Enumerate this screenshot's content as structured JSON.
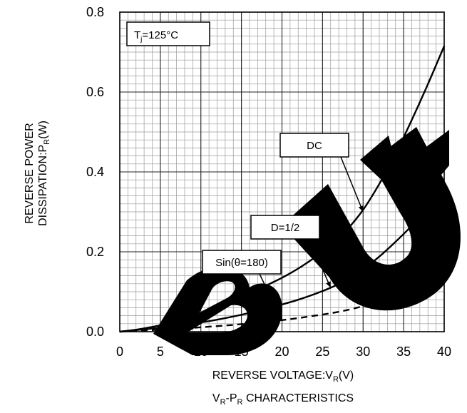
{
  "chart_data": {
    "type": "line",
    "title": "",
    "caption": {
      "main": "V",
      "sub1": "R",
      "mid": "-P",
      "sub2": "R",
      "rest": " CHARACTERISTICS"
    },
    "xlabel": {
      "main": "REVERSE VOLTAGE:V",
      "sub": "R",
      "unit": "(V)"
    },
    "ylabel": {
      "line1": "REVERSE POWER",
      "line2_main": "DISSIPATION:P",
      "line2_sub": "R",
      "line2_unit": "(W)"
    },
    "xlim": [
      0,
      40
    ],
    "ylim": [
      0,
      0.8
    ],
    "x_ticks": [
      "0",
      "5",
      "10",
      "15",
      "20",
      "25",
      "30",
      "35",
      "40"
    ],
    "y_ticks": [
      "0.0",
      "0.2",
      "0.4",
      "0.6",
      "0.8"
    ],
    "grid": true,
    "condition": {
      "main": "T",
      "sub": "j",
      "rest": "=125°C"
    },
    "series": [
      {
        "name": "DC",
        "style": "solid",
        "x": [
          0,
          2,
          4,
          6,
          8,
          10,
          12,
          14,
          16,
          18,
          20,
          22,
          24,
          26,
          28,
          30,
          32,
          34,
          36,
          38,
          40
        ],
        "y": [
          0,
          0.005,
          0.012,
          0.02,
          0.03,
          0.043,
          0.058,
          0.075,
          0.095,
          0.115,
          0.135,
          0.158,
          0.185,
          0.215,
          0.255,
          0.305,
          0.37,
          0.445,
          0.53,
          0.62,
          0.715
        ]
      },
      {
        "name": "D=1/2",
        "style": "solid",
        "x": [
          0,
          2,
          4,
          6,
          8,
          10,
          12,
          14,
          16,
          18,
          20,
          22,
          24,
          26,
          28,
          30,
          32,
          34,
          36,
          38,
          40
        ],
        "y": [
          0,
          0.004,
          0.008,
          0.012,
          0.017,
          0.023,
          0.03,
          0.038,
          0.047,
          0.057,
          0.068,
          0.08,
          0.094,
          0.11,
          0.13,
          0.156,
          0.188,
          0.225,
          0.265,
          0.31,
          0.357
        ]
      },
      {
        "name": "Sin(θ=180)",
        "style": "dashed",
        "x": [
          0,
          2,
          4,
          6,
          8,
          10,
          12,
          14,
          16,
          18,
          20,
          22,
          24,
          26,
          28,
          30,
          32,
          34,
          36,
          38,
          40
        ],
        "y": [
          0,
          0.002,
          0.004,
          0.006,
          0.008,
          0.011,
          0.014,
          0.017,
          0.021,
          0.025,
          0.029,
          0.034,
          0.04,
          0.046,
          0.054,
          0.064,
          0.076,
          0.09,
          0.106,
          0.124,
          0.144
        ]
      }
    ],
    "annotations": [
      {
        "label": "DC",
        "target": [
          30,
          0.3
        ]
      },
      {
        "label": "D=1/2",
        "target": [
          26,
          0.11
        ]
      },
      {
        "label": "Sin(θ=180)",
        "target": [
          20,
          0.028
        ]
      }
    ],
    "watermark": "BUY"
  }
}
